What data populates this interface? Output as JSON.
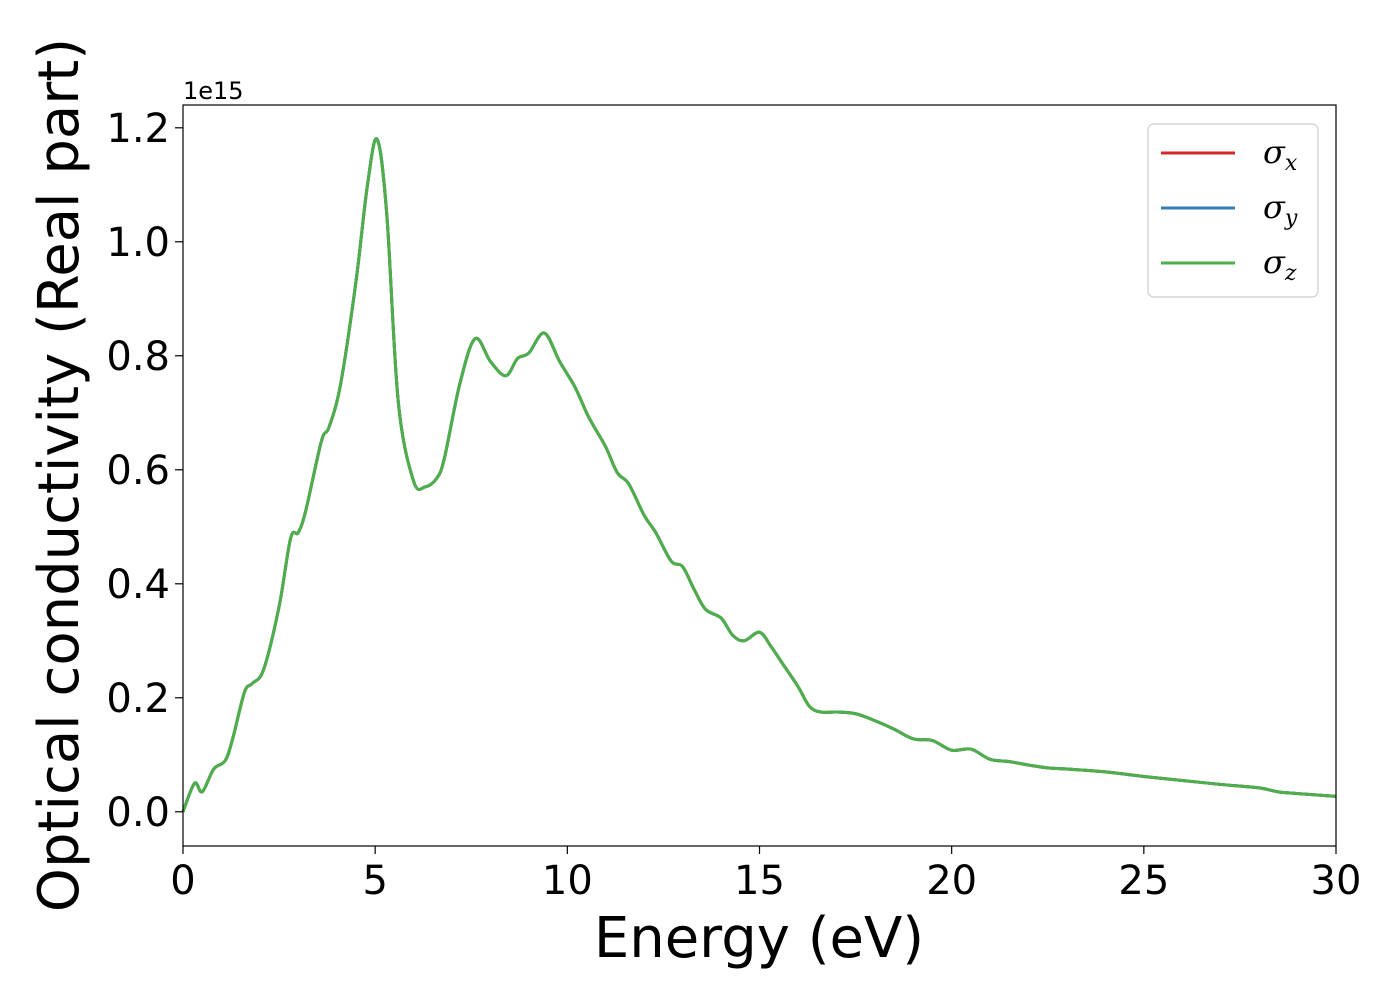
{
  "chart_data": {
    "type": "line",
    "xlabel": "Energy (eV)",
    "ylabel": "Optical conductivity (Real part)",
    "y_offset_label": "1e15",
    "xlim": [
      0,
      30
    ],
    "ylim": [
      -0.06,
      1.24
    ],
    "y_scale_factor": 1000000000000000.0,
    "x_ticks": [
      0,
      5,
      10,
      15,
      20,
      25,
      30
    ],
    "x_tick_labels": [
      "0",
      "5",
      "10",
      "15",
      "20",
      "25",
      "30"
    ],
    "y_ticks": [
      0.0,
      0.2,
      0.4,
      0.6,
      0.8,
      1.0,
      1.2
    ],
    "y_tick_labels": [
      "0.0",
      "0.2",
      "0.4",
      "0.6",
      "0.8",
      "1.0",
      "1.2"
    ],
    "grid": false,
    "legend": {
      "position": "top-right",
      "entries": [
        {
          "symbol": "σ",
          "sub": "x",
          "color": "#d62728"
        },
        {
          "symbol": "σ",
          "sub": "y",
          "color": "#377eb8"
        },
        {
          "symbol": "σ",
          "sub": "z",
          "color": "#4daf4a"
        }
      ]
    },
    "x": [
      0.0,
      0.3,
      0.5,
      0.8,
      1.1,
      1.3,
      1.6,
      1.8,
      2.1,
      2.5,
      2.8,
      3.0,
      3.2,
      3.6,
      3.8,
      4.1,
      4.5,
      4.8,
      5.05,
      5.3,
      5.6,
      6.0,
      6.3,
      6.6,
      6.8,
      7.2,
      7.6,
      8.0,
      8.4,
      8.7,
      9.0,
      9.4,
      9.8,
      10.2,
      10.5,
      10.7,
      11.0,
      11.3,
      11.6,
      12.0,
      12.3,
      12.7,
      13.0,
      13.3,
      13.6,
      14.0,
      14.3,
      14.6,
      15.0,
      15.3,
      15.6,
      16.0,
      16.3,
      16.6,
      17.0,
      17.5,
      18.0,
      18.5,
      19.0,
      19.5,
      20.0,
      20.5,
      21.0,
      21.5,
      22.0,
      22.5,
      23.0,
      24.0,
      25.0,
      26.0,
      27.0,
      28.0,
      28.5,
      29.0,
      30.0
    ],
    "series": [
      {
        "name": "σx",
        "color": "#d62728",
        "values": [
          0.0,
          0.05,
          0.035,
          0.075,
          0.09,
          0.13,
          0.21,
          0.225,
          0.25,
          0.36,
          0.48,
          0.49,
          0.53,
          0.65,
          0.675,
          0.75,
          0.93,
          1.1,
          1.18,
          1.05,
          0.72,
          0.58,
          0.57,
          0.585,
          0.62,
          0.75,
          0.83,
          0.79,
          0.765,
          0.795,
          0.805,
          0.84,
          0.79,
          0.745,
          0.7,
          0.675,
          0.64,
          0.595,
          0.575,
          0.52,
          0.49,
          0.44,
          0.43,
          0.39,
          0.355,
          0.34,
          0.31,
          0.3,
          0.315,
          0.29,
          0.26,
          0.22,
          0.185,
          0.175,
          0.175,
          0.172,
          0.16,
          0.145,
          0.128,
          0.125,
          0.108,
          0.11,
          0.092,
          0.088,
          0.082,
          0.077,
          0.075,
          0.07,
          0.062,
          0.055,
          0.048,
          0.042,
          0.035,
          0.032,
          0.027
        ]
      },
      {
        "name": "σy",
        "color": "#377eb8",
        "values": [
          0.0,
          0.05,
          0.035,
          0.075,
          0.09,
          0.13,
          0.21,
          0.225,
          0.25,
          0.36,
          0.48,
          0.49,
          0.53,
          0.65,
          0.675,
          0.75,
          0.93,
          1.1,
          1.18,
          1.05,
          0.72,
          0.58,
          0.57,
          0.585,
          0.62,
          0.75,
          0.83,
          0.79,
          0.765,
          0.795,
          0.805,
          0.84,
          0.79,
          0.745,
          0.7,
          0.675,
          0.64,
          0.595,
          0.575,
          0.52,
          0.49,
          0.44,
          0.43,
          0.39,
          0.355,
          0.34,
          0.31,
          0.3,
          0.315,
          0.29,
          0.26,
          0.22,
          0.185,
          0.175,
          0.175,
          0.172,
          0.16,
          0.145,
          0.128,
          0.125,
          0.108,
          0.11,
          0.092,
          0.088,
          0.082,
          0.077,
          0.075,
          0.07,
          0.062,
          0.055,
          0.048,
          0.042,
          0.035,
          0.032,
          0.027
        ]
      },
      {
        "name": "σz",
        "color": "#4daf4a",
        "values": [
          0.0,
          0.05,
          0.035,
          0.075,
          0.09,
          0.13,
          0.21,
          0.225,
          0.25,
          0.36,
          0.48,
          0.49,
          0.53,
          0.65,
          0.675,
          0.75,
          0.93,
          1.1,
          1.18,
          1.05,
          0.72,
          0.58,
          0.57,
          0.585,
          0.62,
          0.75,
          0.83,
          0.79,
          0.765,
          0.795,
          0.805,
          0.84,
          0.79,
          0.745,
          0.7,
          0.675,
          0.64,
          0.595,
          0.575,
          0.52,
          0.49,
          0.44,
          0.43,
          0.39,
          0.355,
          0.34,
          0.31,
          0.3,
          0.315,
          0.29,
          0.26,
          0.22,
          0.185,
          0.175,
          0.175,
          0.172,
          0.16,
          0.145,
          0.128,
          0.125,
          0.108,
          0.11,
          0.092,
          0.088,
          0.082,
          0.077,
          0.075,
          0.07,
          0.062,
          0.055,
          0.048,
          0.042,
          0.035,
          0.032,
          0.027
        ]
      }
    ]
  }
}
